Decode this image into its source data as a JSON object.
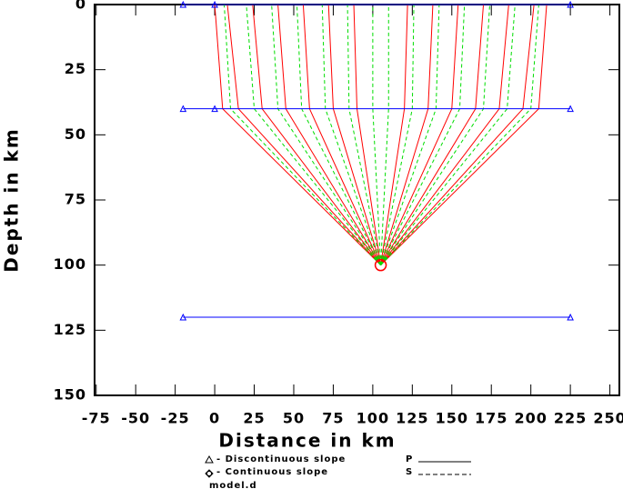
{
  "chart_data": {
    "type": "raypath",
    "xlabel": "Distance in km",
    "ylabel": "Depth in km",
    "xlim": [
      -76,
      256
    ],
    "ylim": [
      0,
      150
    ],
    "xticks": [
      -75,
      -50,
      -25,
      0,
      25,
      50,
      75,
      100,
      125,
      150,
      175,
      200,
      225,
      250
    ],
    "yticks": [
      0,
      25,
      50,
      75,
      100,
      125,
      150
    ],
    "interface_color": "#0000ff",
    "interfaces": [
      {
        "x": [
          -20,
          0,
          225
        ],
        "y": [
          0,
          0,
          0
        ]
      },
      {
        "x": [
          -20,
          0,
          225
        ],
        "y": [
          40,
          40,
          40
        ]
      },
      {
        "x": [
          -20,
          225
        ],
        "y": [
          120,
          120
        ]
      }
    ],
    "source": {
      "x": 105,
      "y": 100,
      "color": "#ff0000"
    },
    "rays": [
      {
        "color": "#ff0000",
        "dashed": false,
        "x": [
          105,
          5,
          0
        ],
        "y": [
          100,
          40,
          0
        ]
      },
      {
        "color": "#ff0000",
        "dashed": false,
        "x": [
          105,
          15,
          8
        ],
        "y": [
          100,
          40,
          0
        ]
      },
      {
        "color": "#ff0000",
        "dashed": false,
        "x": [
          105,
          30,
          24
        ],
        "y": [
          100,
          40,
          0
        ]
      },
      {
        "color": "#ff0000",
        "dashed": false,
        "x": [
          105,
          45,
          40
        ],
        "y": [
          100,
          40,
          0
        ]
      },
      {
        "color": "#ff0000",
        "dashed": false,
        "x": [
          105,
          60,
          56
        ],
        "y": [
          100,
          40,
          0
        ]
      },
      {
        "color": "#ff0000",
        "dashed": false,
        "x": [
          105,
          75,
          72
        ],
        "y": [
          100,
          40,
          0
        ]
      },
      {
        "color": "#ff0000",
        "dashed": false,
        "x": [
          105,
          90,
          88
        ],
        "y": [
          100,
          40,
          0
        ]
      },
      {
        "color": "#ff0000",
        "dashed": false,
        "x": [
          105,
          120,
          122
        ],
        "y": [
          100,
          40,
          0
        ]
      },
      {
        "color": "#ff0000",
        "dashed": false,
        "x": [
          105,
          135,
          138
        ],
        "y": [
          100,
          40,
          0
        ]
      },
      {
        "color": "#ff0000",
        "dashed": false,
        "x": [
          105,
          150,
          154
        ],
        "y": [
          100,
          40,
          0
        ]
      },
      {
        "color": "#ff0000",
        "dashed": false,
        "x": [
          105,
          165,
          170
        ],
        "y": [
          100,
          40,
          0
        ]
      },
      {
        "color": "#ff0000",
        "dashed": false,
        "x": [
          105,
          180,
          186
        ],
        "y": [
          100,
          40,
          0
        ]
      },
      {
        "color": "#ff0000",
        "dashed": false,
        "x": [
          105,
          195,
          202
        ],
        "y": [
          100,
          40,
          0
        ]
      },
      {
        "color": "#ff0000",
        "dashed": false,
        "x": [
          105,
          205,
          210
        ],
        "y": [
          100,
          40,
          0
        ]
      },
      {
        "color": "#00dd00",
        "dashed": true,
        "x": [
          105,
          10,
          6
        ],
        "y": [
          100,
          40,
          0
        ]
      },
      {
        "color": "#00dd00",
        "dashed": true,
        "x": [
          105,
          25,
          20
        ],
        "y": [
          100,
          40,
          0
        ]
      },
      {
        "color": "#00dd00",
        "dashed": true,
        "x": [
          105,
          40,
          36
        ],
        "y": [
          100,
          40,
          0
        ]
      },
      {
        "color": "#00dd00",
        "dashed": true,
        "x": [
          105,
          55,
          52
        ],
        "y": [
          100,
          40,
          0
        ]
      },
      {
        "color": "#00dd00",
        "dashed": true,
        "x": [
          105,
          70,
          68
        ],
        "y": [
          100,
          40,
          0
        ]
      },
      {
        "color": "#00dd00",
        "dashed": true,
        "x": [
          105,
          85,
          84
        ],
        "y": [
          100,
          40,
          0
        ]
      },
      {
        "color": "#00dd00",
        "dashed": true,
        "x": [
          105,
          100,
          100
        ],
        "y": [
          100,
          40,
          0
        ]
      },
      {
        "color": "#00dd00",
        "dashed": true,
        "x": [
          105,
          110,
          110
        ],
        "y": [
          100,
          40,
          0
        ]
      },
      {
        "color": "#00dd00",
        "dashed": true,
        "x": [
          105,
          125,
          126
        ],
        "y": [
          100,
          40,
          0
        ]
      },
      {
        "color": "#00dd00",
        "dashed": true,
        "x": [
          105,
          140,
          142
        ],
        "y": [
          100,
          40,
          0
        ]
      },
      {
        "color": "#00dd00",
        "dashed": true,
        "x": [
          105,
          155,
          158
        ],
        "y": [
          100,
          40,
          0
        ]
      },
      {
        "color": "#00dd00",
        "dashed": true,
        "x": [
          105,
          170,
          174
        ],
        "y": [
          100,
          40,
          0
        ]
      },
      {
        "color": "#00dd00",
        "dashed": true,
        "x": [
          105,
          185,
          190
        ],
        "y": [
          100,
          40,
          0
        ]
      },
      {
        "color": "#00dd00",
        "dashed": true,
        "x": [
          105,
          200,
          205
        ],
        "y": [
          100,
          40,
          0
        ]
      }
    ],
    "legend": {
      "discontinuous": "- Discontinuous slope",
      "continuous": "- Continuous slope",
      "model": "model.d",
      "p": "P",
      "s": "S"
    }
  }
}
